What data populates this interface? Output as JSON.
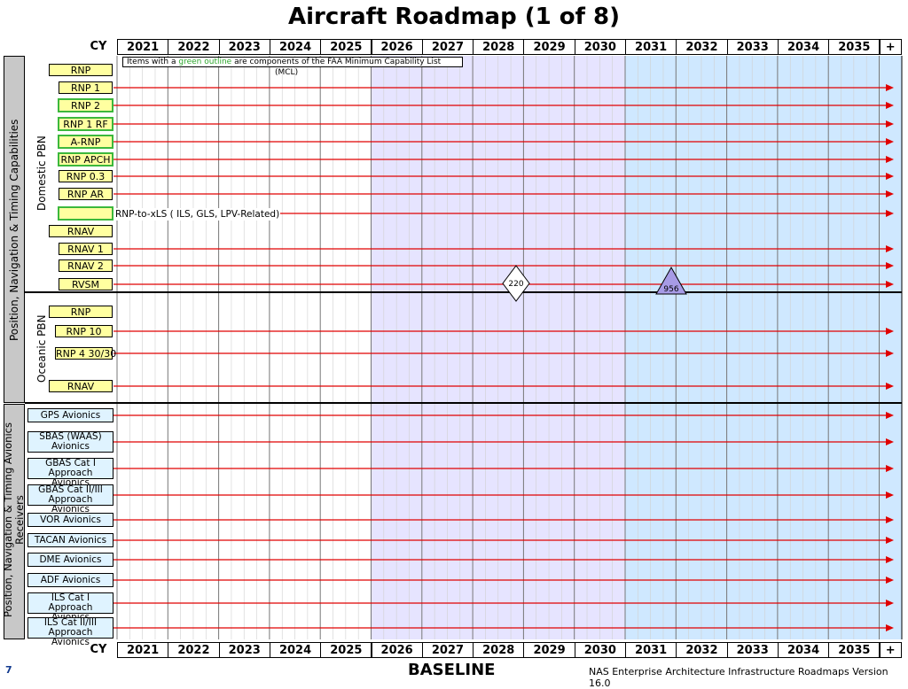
{
  "title": "Aircraft Roadmap (1 of 8)",
  "cy_label": "CY",
  "years": [
    "2021",
    "2022",
    "2023",
    "2024",
    "2025",
    "2026",
    "2027",
    "2028",
    "2029",
    "2030",
    "2031",
    "2032",
    "2033",
    "2034",
    "2035",
    "+"
  ],
  "note": {
    "prefix": "Items with a ",
    "green_text": "green outline",
    "suffix": " are components of the FAA Minimum Capability List",
    "line2": "(MCL)"
  },
  "groups": {
    "outer_top": "Position, Navigation & Timing Capabilities",
    "domestic": "Domestic PBN",
    "oceanic": "Oceanic PBN",
    "outer_bottom": "Position, Navigation & Timing Avionics Receivers"
  },
  "domestic_rows": [
    {
      "label": "RNP",
      "green": false
    },
    {
      "label": "RNP 1",
      "green": false
    },
    {
      "label": "RNP 2",
      "green": true
    },
    {
      "label": "RNP 1 RF",
      "green": true
    },
    {
      "label": "A-RNP",
      "green": true
    },
    {
      "label": "RNP APCH",
      "green": true
    },
    {
      "label": "RNP 0.3",
      "green": false
    },
    {
      "label": "RNP AR",
      "green": false
    },
    {
      "label": "",
      "green": true
    },
    {
      "label": "RNAV",
      "green": false
    },
    {
      "label": "RNAV 1",
      "green": false
    },
    {
      "label": "RNAV 2",
      "green": false
    },
    {
      "label": "RVSM",
      "green": false
    }
  ],
  "xls_note": "RNP-to-xLS ( ILS, GLS, LPV-Related)",
  "oceanic_rows": [
    {
      "label": "RNP"
    },
    {
      "label": "RNP 10"
    },
    {
      "label": "RNP 4 30/30"
    },
    {
      "label": "RNAV"
    }
  ],
  "avionics_rows": [
    {
      "label": "GPS Avionics"
    },
    {
      "label": "SBAS (WAAS) Avionics"
    },
    {
      "label": "GBAS Cat I Approach Avionics"
    },
    {
      "label": "GBAS Cat II/III Approach Avionics"
    },
    {
      "label": "VOR Avionics"
    },
    {
      "label": "TACAN Avionics"
    },
    {
      "label": "DME Avionics"
    },
    {
      "label": "ADF Avionics"
    },
    {
      "label": "ILS Cat I Approach Avionics"
    },
    {
      "label": "ILS Cat II/III Approach Avionics"
    }
  ],
  "milestones": {
    "diamond": "220",
    "triangle": "956"
  },
  "colors": {
    "arrow": "#e00000",
    "lavender": "#e6e4ff",
    "lightblue": "#cfe8ff",
    "green": "#3cb83c",
    "triangle": "#a79be6"
  },
  "footer": {
    "page": "7",
    "baseline": "BASELINE",
    "version": "NAS Enterprise Architecture Infrastructure Roadmaps Version 16.0"
  }
}
